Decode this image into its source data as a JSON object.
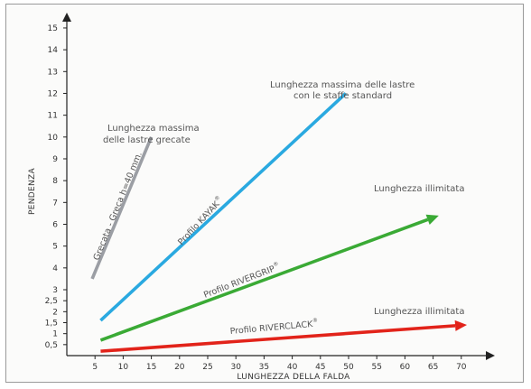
{
  "chart_data": {
    "type": "line",
    "xlabel": "LUNGHEZZA DELLA FALDA",
    "ylabel": "PENDENZA",
    "x_ticks": [
      5,
      10,
      15,
      20,
      25,
      30,
      35,
      40,
      45,
      50,
      55,
      60,
      65,
      70
    ],
    "y_ticks": [
      0.5,
      1,
      1.5,
      2,
      2.5,
      3,
      4,
      5,
      6,
      7,
      8,
      9,
      10,
      11,
      12,
      13,
      14,
      15
    ],
    "y_tick_labels": [
      "0,5",
      "1",
      "1,5",
      "2",
      "2,5",
      "3",
      "4",
      "5",
      "6",
      "7",
      "8",
      "9",
      "10",
      "11",
      "12",
      "13",
      "14",
      "15"
    ],
    "xlim": [
      0,
      73
    ],
    "ylim": [
      0,
      16
    ],
    "grid": false,
    "series": [
      {
        "name": "Grecata - Greca h=40 mm.",
        "color": "#9b9ea4",
        "arrow": false,
        "x": [
          4.5,
          15
        ],
        "y": [
          3.5,
          10
        ]
      },
      {
        "name": "Profilo KAYAK",
        "color": "#2aa9e0",
        "arrow": false,
        "x": [
          6,
          49.5
        ],
        "y": [
          1.6,
          12
        ]
      },
      {
        "name": "Profilo RIVERGRIP",
        "color": "#3aaa35",
        "arrow": true,
        "x": [
          6,
          66
        ],
        "y": [
          0.7,
          6.4
        ]
      },
      {
        "name": "Profilo RIVERCLACK",
        "color": "#e2231a",
        "arrow": true,
        "x": [
          6,
          71
        ],
        "y": [
          0.2,
          1.4
        ]
      }
    ],
    "annotations": [
      {
        "name": "grecata-max-length-note",
        "lines": [
          "Lunghezza massima",
          "delle lastre grecate"
        ]
      },
      {
        "name": "kayak-max-length-note",
        "lines": [
          "Lunghezza massima delle lastre",
          "con le staffe standard"
        ]
      },
      {
        "name": "rivergrip-unlimited-note",
        "lines": [
          "Lunghezza illimitata"
        ]
      },
      {
        "name": "riverclack-unlimited-note",
        "lines": [
          "Lunghezza illimitata"
        ]
      }
    ],
    "registered_mark": "®"
  }
}
